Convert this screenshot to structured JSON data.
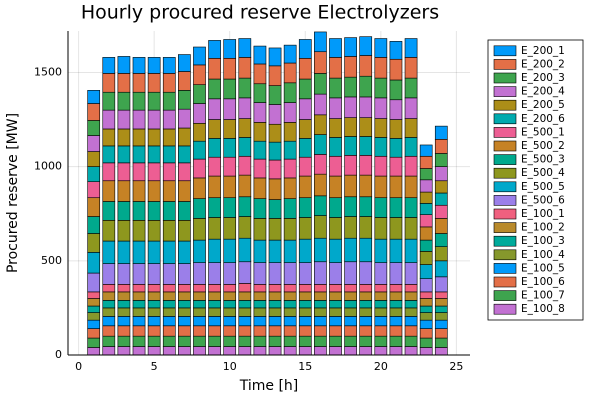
{
  "chart_data": {
    "type": "stacked_bar",
    "title": "Hourly procured reserve Electrolyzers",
    "x_label": "Time [h]",
    "y_label": "Procured reserve [MW]",
    "x": [
      1,
      2,
      3,
      4,
      5,
      6,
      7,
      8,
      9,
      10,
      11,
      12,
      13,
      14,
      15,
      16,
      17,
      18,
      19,
      20,
      21,
      22,
      23,
      24
    ],
    "xlim": [
      -0.7,
      25.9
    ],
    "xticks": [
      0,
      5,
      10,
      15,
      20,
      25
    ],
    "ylim": [
      0,
      1720
    ],
    "yticks": [
      0,
      500,
      1000,
      1500
    ],
    "grid": true,
    "legend": "outer-right",
    "series": [
      {
        "name": "E_200_1",
        "color": "#009AFA",
        "values": [
          70,
          85,
          90,
          85,
          85,
          85,
          90,
          95,
          95,
          100,
          100,
          95,
          95,
          95,
          100,
          105,
          100,
          100,
          100,
          100,
          95,
          100,
          60,
          70
        ]
      },
      {
        "name": "E_200_2",
        "color": "#E36F47",
        "values": [
          90,
          100,
          100,
          100,
          100,
          100,
          100,
          105,
          110,
          110,
          110,
          105,
          105,
          105,
          110,
          115,
          110,
          110,
          110,
          110,
          110,
          110,
          65,
          75
        ]
      },
      {
        "name": "E_200_3",
        "color": "#3EA44E",
        "values": [
          80,
          95,
          95,
          95,
          95,
          95,
          100,
          100,
          105,
          105,
          105,
          100,
          100,
          105,
          105,
          110,
          105,
          105,
          110,
          105,
          105,
          105,
          60,
          70
        ]
      },
      {
        "name": "E_200_4",
        "color": "#C271D2",
        "values": [
          85,
          100,
          100,
          100,
          100,
          100,
          100,
          105,
          110,
          110,
          110,
          105,
          105,
          105,
          110,
          110,
          110,
          110,
          110,
          110,
          105,
          110,
          65,
          75
        ]
      },
      {
        "name": "E_200_5",
        "color": "#AC8E18",
        "values": [
          80,
          90,
          90,
          90,
          90,
          90,
          95,
          95,
          100,
          100,
          100,
          100,
          95,
          100,
          100,
          105,
          100,
          100,
          100,
          100,
          100,
          100,
          60,
          65
        ]
      },
      {
        "name": "E_200_6",
        "color": "#00AAAE",
        "values": [
          80,
          90,
          90,
          90,
          90,
          90,
          90,
          95,
          100,
          100,
          100,
          95,
          95,
          95,
          100,
          105,
          100,
          100,
          100,
          100,
          100,
          100,
          60,
          65
        ]
      },
      {
        "name": "E_500_1",
        "color": "#ED5E93",
        "values": [
          85,
          95,
          95,
          95,
          95,
          95,
          95,
          100,
          100,
          100,
          100,
          100,
          100,
          100,
          100,
          105,
          105,
          105,
          105,
          105,
          100,
          105,
          65,
          70
        ]
      },
      {
        "name": "E_500_2",
        "color": "#C68225",
        "values": [
          100,
          110,
          110,
          110,
          110,
          110,
          110,
          110,
          115,
          115,
          115,
          110,
          110,
          110,
          115,
          115,
          115,
          115,
          115,
          115,
          115,
          115,
          70,
          80
        ]
      },
      {
        "name": "E_500_3",
        "color": "#00A98D",
        "values": [
          90,
          100,
          100,
          100,
          100,
          100,
          100,
          105,
          105,
          105,
          105,
          105,
          100,
          105,
          105,
          105,
          105,
          105,
          105,
          105,
          105,
          105,
          60,
          70
        ]
      },
      {
        "name": "E_500_4",
        "color": "#8E971E",
        "values": [
          100,
          110,
          110,
          110,
          110,
          110,
          110,
          115,
          115,
          115,
          115,
          115,
          115,
          115,
          115,
          120,
          115,
          115,
          115,
          115,
          115,
          115,
          70,
          75
        ]
      },
      {
        "name": "E_500_5",
        "color": "#00A8CB",
        "values": [
          110,
          120,
          120,
          120,
          120,
          120,
          120,
          120,
          125,
          125,
          125,
          120,
          120,
          120,
          125,
          125,
          125,
          125,
          125,
          125,
          125,
          125,
          75,
          85
        ]
      },
      {
        "name": "E_500_6",
        "color": "#9B7FE9",
        "values": [
          100,
          110,
          110,
          110,
          110,
          110,
          110,
          115,
          115,
          115,
          115,
          115,
          115,
          115,
          115,
          120,
          115,
          120,
          120,
          115,
          115,
          115,
          70,
          80
        ]
      },
      {
        "name": "E_100_1",
        "color": "#F0607F",
        "values": [
          35,
          40,
          40,
          40,
          40,
          40,
          40,
          40,
          40,
          40,
          45,
          40,
          40,
          40,
          40,
          40,
          40,
          40,
          40,
          40,
          40,
          40,
          35,
          35
        ]
      },
      {
        "name": "E_100_2",
        "color": "#B98A2B",
        "values": [
          40,
          45,
          45,
          45,
          45,
          45,
          45,
          45,
          45,
          45,
          45,
          45,
          45,
          45,
          45,
          45,
          45,
          45,
          45,
          45,
          45,
          45,
          40,
          40
        ]
      },
      {
        "name": "E_100_3",
        "color": "#00AA9B",
        "values": [
          35,
          40,
          40,
          40,
          40,
          40,
          40,
          40,
          40,
          40,
          40,
          40,
          40,
          40,
          40,
          40,
          40,
          40,
          40,
          40,
          40,
          40,
          35,
          35
        ]
      },
      {
        "name": "E_100_4",
        "color": "#86982C",
        "values": [
          40,
          45,
          45,
          45,
          45,
          45,
          45,
          45,
          45,
          45,
          45,
          45,
          45,
          45,
          45,
          45,
          45,
          45,
          45,
          45,
          45,
          45,
          40,
          40
        ]
      },
      {
        "name": "E_100_5",
        "color": "#009AFA",
        "values": [
          45,
          50,
          50,
          50,
          50,
          50,
          50,
          50,
          50,
          50,
          50,
          50,
          50,
          50,
          50,
          50,
          50,
          50,
          50,
          50,
          50,
          50,
          45,
          45
        ]
      },
      {
        "name": "E_100_6",
        "color": "#E36F47",
        "values": [
          50,
          55,
          55,
          55,
          55,
          55,
          55,
          55,
          55,
          55,
          55,
          55,
          55,
          55,
          55,
          55,
          55,
          55,
          55,
          55,
          55,
          55,
          50,
          50
        ]
      },
      {
        "name": "E_100_7",
        "color": "#3EA44E",
        "values": [
          50,
          55,
          55,
          55,
          55,
          55,
          55,
          55,
          55,
          55,
          55,
          55,
          55,
          55,
          55,
          55,
          55,
          55,
          55,
          55,
          55,
          55,
          50,
          50
        ]
      },
      {
        "name": "E_100_8",
        "color": "#C271D2",
        "values": [
          40,
          45,
          45,
          45,
          45,
          45,
          45,
          45,
          45,
          45,
          45,
          45,
          45,
          45,
          45,
          45,
          45,
          45,
          45,
          45,
          45,
          45,
          40,
          40
        ]
      }
    ]
  }
}
